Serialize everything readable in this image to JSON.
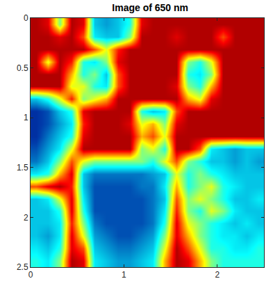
{
  "chart_data": {
    "type": "heatmap",
    "title": "Image of 650 nm",
    "color": "Jet",
    "x": [
      0.0625,
      0.1875,
      0.3125,
      0.4375,
      0.5625,
      0.6875,
      0.8125,
      0.9375,
      1.0625,
      1.1875,
      1.3125,
      1.4375,
      1.5625,
      1.6875,
      1.8125,
      1.9375,
      2.0625,
      2.1875,
      2.3125,
      2.4375
    ],
    "y": [
      0.0625,
      0.1875,
      0.3125,
      0.4375,
      0.5625,
      0.6875,
      0.8125,
      0.9375,
      1.0625,
      1.1875,
      1.3125,
      1.4375,
      1.5625,
      1.6875,
      1.8125,
      1.9375,
      2.0625,
      2.1875,
      2.3125,
      2.4375
    ],
    "cells": [
      [
        0.95,
        0.9,
        0.5,
        0.95,
        0.9,
        0.3,
        0.25,
        0.3,
        0.4,
        0.9,
        0.95,
        0.95,
        0.95,
        0.95,
        0.95,
        0.95,
        0.95,
        0.95,
        0.95,
        0.95
      ],
      [
        0.95,
        0.95,
        0.9,
        0.95,
        0.8,
        0.35,
        0.3,
        0.3,
        0.5,
        0.95,
        0.95,
        0.95,
        0.9,
        0.95,
        0.95,
        0.95,
        0.8,
        0.95,
        0.95,
        0.95
      ],
      [
        0.95,
        0.95,
        0.95,
        0.95,
        0.95,
        0.8,
        0.6,
        0.85,
        0.95,
        0.95,
        0.95,
        0.95,
        0.95,
        0.95,
        0.95,
        0.95,
        0.95,
        0.95,
        0.95,
        0.95
      ],
      [
        0.95,
        0.6,
        0.95,
        0.85,
        0.4,
        0.35,
        0.5,
        0.9,
        0.95,
        0.95,
        0.95,
        0.95,
        0.95,
        0.5,
        0.4,
        0.6,
        0.95,
        0.95,
        0.95,
        0.95
      ],
      [
        0.95,
        0.95,
        0.95,
        0.7,
        0.4,
        0.5,
        0.3,
        0.8,
        0.95,
        0.95,
        0.95,
        0.95,
        0.95,
        0.4,
        0.35,
        0.5,
        0.95,
        0.95,
        0.95,
        0.95
      ],
      [
        0.95,
        0.95,
        0.95,
        0.6,
        0.6,
        0.4,
        0.35,
        0.8,
        0.95,
        0.95,
        0.95,
        0.95,
        0.9,
        0.5,
        0.4,
        0.7,
        0.95,
        0.95,
        0.95,
        0.95
      ],
      [
        0.3,
        0.4,
        0.6,
        0.85,
        0.5,
        0.6,
        0.7,
        0.95,
        0.95,
        0.95,
        0.95,
        0.95,
        0.95,
        0.7,
        0.6,
        0.9,
        0.95,
        0.95,
        0.95,
        0.95
      ],
      [
        0.1,
        0.15,
        0.3,
        0.4,
        0.9,
        0.95,
        0.95,
        0.95,
        0.95,
        0.4,
        0.3,
        0.35,
        0.8,
        0.95,
        0.95,
        0.95,
        0.95,
        0.95,
        0.95,
        0.95
      ],
      [
        0.1,
        0.15,
        0.25,
        0.35,
        0.85,
        0.95,
        0.95,
        0.95,
        0.9,
        0.6,
        0.7,
        0.5,
        0.9,
        0.95,
        0.95,
        0.95,
        0.95,
        0.95,
        0.95,
        0.95
      ],
      [
        0.1,
        0.2,
        0.3,
        0.4,
        0.9,
        0.95,
        0.95,
        0.95,
        0.95,
        0.7,
        0.8,
        0.6,
        0.95,
        0.95,
        0.95,
        0.95,
        0.95,
        0.95,
        0.95,
        0.95
      ],
      [
        0.15,
        0.25,
        0.35,
        0.6,
        0.95,
        0.95,
        0.95,
        0.95,
        0.95,
        0.5,
        0.6,
        0.4,
        0.95,
        0.95,
        0.8,
        0.35,
        0.3,
        0.25,
        0.3,
        0.3
      ],
      [
        0.2,
        0.3,
        0.5,
        0.8,
        0.6,
        0.5,
        0.5,
        0.5,
        0.5,
        0.5,
        0.4,
        0.6,
        0.8,
        0.5,
        0.4,
        0.3,
        0.3,
        0.25,
        0.3,
        0.25
      ],
      [
        0.35,
        0.4,
        0.7,
        0.9,
        0.3,
        0.2,
        0.2,
        0.2,
        0.2,
        0.2,
        0.25,
        0.3,
        0.6,
        0.4,
        0.5,
        0.4,
        0.35,
        0.3,
        0.3,
        0.3
      ],
      [
        0.8,
        0.9,
        0.95,
        0.85,
        0.3,
        0.15,
        0.15,
        0.15,
        0.15,
        0.2,
        0.2,
        0.35,
        0.7,
        0.4,
        0.5,
        0.6,
        0.4,
        0.35,
        0.3,
        0.3
      ],
      [
        0.3,
        0.35,
        0.6,
        0.9,
        0.35,
        0.15,
        0.15,
        0.15,
        0.15,
        0.15,
        0.2,
        0.3,
        0.8,
        0.5,
        0.6,
        0.5,
        0.4,
        0.3,
        0.3,
        0.35
      ],
      [
        0.3,
        0.3,
        0.4,
        0.9,
        0.4,
        0.15,
        0.15,
        0.15,
        0.15,
        0.15,
        0.2,
        0.35,
        0.85,
        0.5,
        0.4,
        0.6,
        0.5,
        0.35,
        0.3,
        0.3
      ],
      [
        0.3,
        0.3,
        0.35,
        0.85,
        0.5,
        0.2,
        0.15,
        0.15,
        0.15,
        0.15,
        0.2,
        0.4,
        0.9,
        0.6,
        0.5,
        0.4,
        0.35,
        0.3,
        0.35,
        0.3
      ],
      [
        0.3,
        0.25,
        0.35,
        0.9,
        0.6,
        0.25,
        0.2,
        0.15,
        0.15,
        0.2,
        0.25,
        0.5,
        0.9,
        0.7,
        0.5,
        0.4,
        0.35,
        0.35,
        0.3,
        0.35
      ],
      [
        0.35,
        0.3,
        0.4,
        0.9,
        0.8,
        0.3,
        0.25,
        0.2,
        0.2,
        0.25,
        0.3,
        0.6,
        0.95,
        0.8,
        0.6,
        0.4,
        0.4,
        0.35,
        0.35,
        0.4
      ],
      [
        0.4,
        0.35,
        0.5,
        0.95,
        0.9,
        0.35,
        0.3,
        0.25,
        0.25,
        0.3,
        0.35,
        0.7,
        0.95,
        0.9,
        0.7,
        0.5,
        0.4,
        0.4,
        0.4,
        0.4
      ]
    ],
    "zlim": [
      0,
      1
    ],
    "xlim": [
      0,
      2.5
    ],
    "xticks": [
      0,
      1,
      2
    ],
    "ylim": [
      2.5,
      0
    ],
    "yticks": [
      0,
      0.5,
      1,
      1.5,
      2,
      2.5
    ],
    "grid": false
  }
}
